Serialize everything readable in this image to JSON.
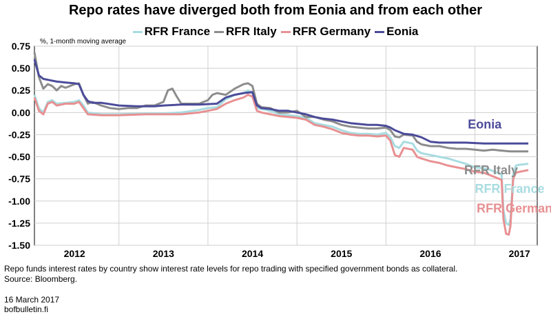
{
  "chart_data": {
    "type": "line",
    "title": "Repo rates have diverged both from Eonia and from each other",
    "ylabel": "%, 1-month moving average",
    "ylim": [
      -1.5,
      0.75
    ],
    "xlim": [
      2011.55,
      2017.2
    ],
    "yticks": [
      0.75,
      0.5,
      0.25,
      0.0,
      -0.25,
      -0.5,
      -0.75,
      -1.0,
      -1.25,
      -1.5
    ],
    "ytick_labels": [
      "0.75",
      "0.50",
      "0.25",
      "0.00",
      "-0.25",
      "-0.50",
      "-0.75",
      "-1.00",
      "-1.25",
      "-1.50"
    ],
    "xtick_labels": [
      {
        "label": "2012",
        "x": 2012.0
      },
      {
        "label": "2013",
        "x": 2013.0
      },
      {
        "label": "2014",
        "x": 2014.0
      },
      {
        "label": "2015",
        "x": 2015.0
      },
      {
        "label": "2016",
        "x": 2016.0
      },
      {
        "label": "2017",
        "x": 2017.0
      }
    ],
    "grid": true,
    "legend_position": "top",
    "series": [
      {
        "name": "RFR France",
        "color": "#a8dce0",
        "label": "RFR France",
        "points": [
          [
            2011.55,
            0.2
          ],
          [
            2011.6,
            0.05
          ],
          [
            2011.65,
            0.0
          ],
          [
            2011.7,
            0.12
          ],
          [
            2011.75,
            0.14
          ],
          [
            2011.8,
            0.1
          ],
          [
            2011.9,
            0.11
          ],
          [
            2012.0,
            0.12
          ],
          [
            2012.05,
            0.14
          ],
          [
            2012.1,
            0.08
          ],
          [
            2012.15,
            0.0
          ],
          [
            2012.3,
            -0.02
          ],
          [
            2012.5,
            -0.02
          ],
          [
            2012.8,
            -0.01
          ],
          [
            2013.0,
            -0.01
          ],
          [
            2013.2,
            0.0
          ],
          [
            2013.4,
            0.03
          ],
          [
            2013.5,
            0.05
          ],
          [
            2013.6,
            0.06
          ],
          [
            2013.7,
            0.15
          ],
          [
            2013.8,
            0.2
          ],
          [
            2013.9,
            0.22
          ],
          [
            2013.95,
            0.25
          ],
          [
            2014.0,
            0.22
          ],
          [
            2014.05,
            0.05
          ],
          [
            2014.1,
            0.04
          ],
          [
            2014.2,
            0.02
          ],
          [
            2014.3,
            -0.02
          ],
          [
            2014.5,
            -0.04
          ],
          [
            2014.6,
            -0.06
          ],
          [
            2014.7,
            -0.12
          ],
          [
            2014.8,
            -0.14
          ],
          [
            2014.9,
            -0.16
          ],
          [
            2015.0,
            -0.2
          ],
          [
            2015.1,
            -0.23
          ],
          [
            2015.2,
            -0.24
          ],
          [
            2015.3,
            -0.24
          ],
          [
            2015.4,
            -0.25
          ],
          [
            2015.5,
            -0.23
          ],
          [
            2015.55,
            -0.28
          ],
          [
            2015.6,
            -0.38
          ],
          [
            2015.65,
            -0.4
          ],
          [
            2015.7,
            -0.33
          ],
          [
            2015.8,
            -0.35
          ],
          [
            2015.85,
            -0.43
          ],
          [
            2015.9,
            -0.46
          ],
          [
            2016.0,
            -0.48
          ],
          [
            2016.1,
            -0.5
          ],
          [
            2016.2,
            -0.52
          ],
          [
            2016.3,
            -0.55
          ],
          [
            2016.4,
            -0.58
          ],
          [
            2016.5,
            -0.62
          ],
          [
            2016.6,
            -0.63
          ],
          [
            2016.65,
            -0.64
          ],
          [
            2016.7,
            -0.66
          ],
          [
            2016.75,
            -0.68
          ],
          [
            2016.8,
            -0.7
          ],
          [
            2016.82,
            -1.1
          ],
          [
            2016.85,
            -1.25
          ],
          [
            2016.88,
            -1.27
          ],
          [
            2016.9,
            -1.2
          ],
          [
            2016.93,
            -0.7
          ],
          [
            2016.96,
            -0.6
          ],
          [
            2017.0,
            -0.59
          ],
          [
            2017.1,
            -0.58
          ]
        ]
      },
      {
        "name": "RFR Italy",
        "color": "#8c8c8c",
        "label": "RFR Italy",
        "points": [
          [
            2011.55,
            0.68
          ],
          [
            2011.6,
            0.4
          ],
          [
            2011.65,
            0.27
          ],
          [
            2011.7,
            0.32
          ],
          [
            2011.75,
            0.3
          ],
          [
            2011.8,
            0.25
          ],
          [
            2011.85,
            0.3
          ],
          [
            2011.9,
            0.28
          ],
          [
            2011.95,
            0.3
          ],
          [
            2012.0,
            0.32
          ],
          [
            2012.05,
            0.33
          ],
          [
            2012.1,
            0.2
          ],
          [
            2012.15,
            0.1
          ],
          [
            2012.2,
            0.12
          ],
          [
            2012.3,
            0.08
          ],
          [
            2012.4,
            0.05
          ],
          [
            2012.5,
            0.04
          ],
          [
            2012.6,
            0.05
          ],
          [
            2012.7,
            0.05
          ],
          [
            2012.8,
            0.08
          ],
          [
            2012.9,
            0.08
          ],
          [
            2013.0,
            0.12
          ],
          [
            2013.05,
            0.25
          ],
          [
            2013.1,
            0.27
          ],
          [
            2013.15,
            0.18
          ],
          [
            2013.2,
            0.1
          ],
          [
            2013.3,
            0.1
          ],
          [
            2013.4,
            0.1
          ],
          [
            2013.5,
            0.14
          ],
          [
            2013.55,
            0.2
          ],
          [
            2013.6,
            0.22
          ],
          [
            2013.7,
            0.2
          ],
          [
            2013.8,
            0.27
          ],
          [
            2013.9,
            0.32
          ],
          [
            2013.95,
            0.33
          ],
          [
            2014.0,
            0.3
          ],
          [
            2014.05,
            0.1
          ],
          [
            2014.1,
            0.06
          ],
          [
            2014.2,
            0.05
          ],
          [
            2014.3,
            0.0
          ],
          [
            2014.4,
            0.0
          ],
          [
            2014.5,
            0.02
          ],
          [
            2014.6,
            -0.05
          ],
          [
            2014.7,
            -0.05
          ],
          [
            2014.8,
            -0.08
          ],
          [
            2014.9,
            -0.1
          ],
          [
            2015.0,
            -0.14
          ],
          [
            2015.1,
            -0.16
          ],
          [
            2015.2,
            -0.17
          ],
          [
            2015.3,
            -0.18
          ],
          [
            2015.4,
            -0.18
          ],
          [
            2015.5,
            -0.17
          ],
          [
            2015.55,
            -0.2
          ],
          [
            2015.6,
            -0.27
          ],
          [
            2015.65,
            -0.28
          ],
          [
            2015.7,
            -0.25
          ],
          [
            2015.8,
            -0.26
          ],
          [
            2015.85,
            -0.33
          ],
          [
            2015.9,
            -0.36
          ],
          [
            2016.0,
            -0.38
          ],
          [
            2016.1,
            -0.38
          ],
          [
            2016.2,
            -0.4
          ],
          [
            2016.3,
            -0.41
          ],
          [
            2016.4,
            -0.41
          ],
          [
            2016.5,
            -0.42
          ],
          [
            2016.6,
            -0.43
          ],
          [
            2016.7,
            -0.42
          ],
          [
            2016.8,
            -0.43
          ],
          [
            2016.9,
            -0.44
          ],
          [
            2017.0,
            -0.44
          ],
          [
            2017.1,
            -0.44
          ]
        ]
      },
      {
        "name": "RFR Germany",
        "color": "#e89092",
        "label": "RFR Germany",
        "points": [
          [
            2011.55,
            0.17
          ],
          [
            2011.6,
            0.02
          ],
          [
            2011.65,
            -0.02
          ],
          [
            2011.7,
            0.1
          ],
          [
            2011.75,
            0.12
          ],
          [
            2011.8,
            0.08
          ],
          [
            2011.9,
            0.1
          ],
          [
            2012.0,
            0.1
          ],
          [
            2012.05,
            0.12
          ],
          [
            2012.1,
            0.05
          ],
          [
            2012.15,
            -0.02
          ],
          [
            2012.3,
            -0.03
          ],
          [
            2012.5,
            -0.03
          ],
          [
            2012.8,
            -0.02
          ],
          [
            2013.0,
            -0.02
          ],
          [
            2013.2,
            -0.02
          ],
          [
            2013.4,
            0.0
          ],
          [
            2013.5,
            0.02
          ],
          [
            2013.6,
            0.04
          ],
          [
            2013.7,
            0.1
          ],
          [
            2013.8,
            0.14
          ],
          [
            2013.9,
            0.17
          ],
          [
            2013.95,
            0.2
          ],
          [
            2014.0,
            0.18
          ],
          [
            2014.05,
            0.02
          ],
          [
            2014.1,
            0.0
          ],
          [
            2014.2,
            -0.02
          ],
          [
            2014.3,
            -0.04
          ],
          [
            2014.5,
            -0.06
          ],
          [
            2014.6,
            -0.08
          ],
          [
            2014.7,
            -0.14
          ],
          [
            2014.8,
            -0.16
          ],
          [
            2014.9,
            -0.19
          ],
          [
            2015.0,
            -0.23
          ],
          [
            2015.1,
            -0.25
          ],
          [
            2015.2,
            -0.26
          ],
          [
            2015.3,
            -0.26
          ],
          [
            2015.4,
            -0.27
          ],
          [
            2015.5,
            -0.26
          ],
          [
            2015.55,
            -0.32
          ],
          [
            2015.6,
            -0.48
          ],
          [
            2015.65,
            -0.5
          ],
          [
            2015.7,
            -0.4
          ],
          [
            2015.8,
            -0.42
          ],
          [
            2015.85,
            -0.5
          ],
          [
            2015.9,
            -0.52
          ],
          [
            2016.0,
            -0.55
          ],
          [
            2016.1,
            -0.57
          ],
          [
            2016.2,
            -0.6
          ],
          [
            2016.3,
            -0.62
          ],
          [
            2016.4,
            -0.64
          ],
          [
            2016.5,
            -0.67
          ],
          [
            2016.6,
            -0.68
          ],
          [
            2016.7,
            -0.72
          ],
          [
            2016.8,
            -0.76
          ],
          [
            2016.82,
            -1.2
          ],
          [
            2016.85,
            -1.37
          ],
          [
            2016.88,
            -1.38
          ],
          [
            2016.9,
            -1.28
          ],
          [
            2016.93,
            -0.75
          ],
          [
            2016.96,
            -0.68
          ],
          [
            2017.0,
            -0.67
          ],
          [
            2017.1,
            -0.65
          ]
        ]
      },
      {
        "name": "Eonia",
        "color": "#4b4b9a",
        "label": "Eonia",
        "points": [
          [
            2011.55,
            0.6
          ],
          [
            2011.6,
            0.42
          ],
          [
            2011.65,
            0.38
          ],
          [
            2011.7,
            0.37
          ],
          [
            2011.8,
            0.35
          ],
          [
            2011.9,
            0.34
          ],
          [
            2012.0,
            0.33
          ],
          [
            2012.05,
            0.32
          ],
          [
            2012.1,
            0.2
          ],
          [
            2012.15,
            0.13
          ],
          [
            2012.2,
            0.11
          ],
          [
            2012.3,
            0.11
          ],
          [
            2012.5,
            0.08
          ],
          [
            2012.7,
            0.07
          ],
          [
            2012.9,
            0.07
          ],
          [
            2013.0,
            0.08
          ],
          [
            2013.2,
            0.09
          ],
          [
            2013.4,
            0.09
          ],
          [
            2013.6,
            0.1
          ],
          [
            2013.7,
            0.17
          ],
          [
            2013.8,
            0.2
          ],
          [
            2013.9,
            0.22
          ],
          [
            2014.0,
            0.23
          ],
          [
            2014.05,
            0.08
          ],
          [
            2014.1,
            0.05
          ],
          [
            2014.2,
            0.04
          ],
          [
            2014.3,
            0.02
          ],
          [
            2014.4,
            0.02
          ],
          [
            2014.5,
            0.0
          ],
          [
            2014.6,
            -0.02
          ],
          [
            2014.7,
            -0.05
          ],
          [
            2014.8,
            -0.07
          ],
          [
            2014.9,
            -0.08
          ],
          [
            2015.0,
            -0.1
          ],
          [
            2015.1,
            -0.12
          ],
          [
            2015.2,
            -0.13
          ],
          [
            2015.3,
            -0.14
          ],
          [
            2015.4,
            -0.14
          ],
          [
            2015.5,
            -0.15
          ],
          [
            2015.55,
            -0.17
          ],
          [
            2015.6,
            -0.2
          ],
          [
            2015.7,
            -0.24
          ],
          [
            2015.8,
            -0.25
          ],
          [
            2015.9,
            -0.28
          ],
          [
            2016.0,
            -0.33
          ],
          [
            2016.1,
            -0.34
          ],
          [
            2016.2,
            -0.34
          ],
          [
            2016.4,
            -0.34
          ],
          [
            2016.6,
            -0.35
          ],
          [
            2016.8,
            -0.35
          ],
          [
            2017.0,
            -0.35
          ],
          [
            2017.1,
            -0.35
          ]
        ]
      }
    ],
    "annotations": [
      {
        "text": "Eonia",
        "color": "#4b4b9a",
        "x": 2016.42,
        "y": -0.18
      },
      {
        "text": "RFR Italy",
        "color": "#8c8c8c",
        "x": 2016.38,
        "y": -0.7
      },
      {
        "text": "RFR France",
        "color": "#a8dce0",
        "x": 2016.5,
        "y": -0.91
      },
      {
        "text": "RFR Germany",
        "color": "#e89092",
        "x": 2016.52,
        "y": -1.13
      }
    ]
  },
  "footer": {
    "note": "Repo funds interest rates by country show interest rate levels for repo trading with specified government bonds as collateral.",
    "source": "Source: Bloomberg.",
    "date": "16 March 2017",
    "site": "bofbulletin.fi"
  }
}
